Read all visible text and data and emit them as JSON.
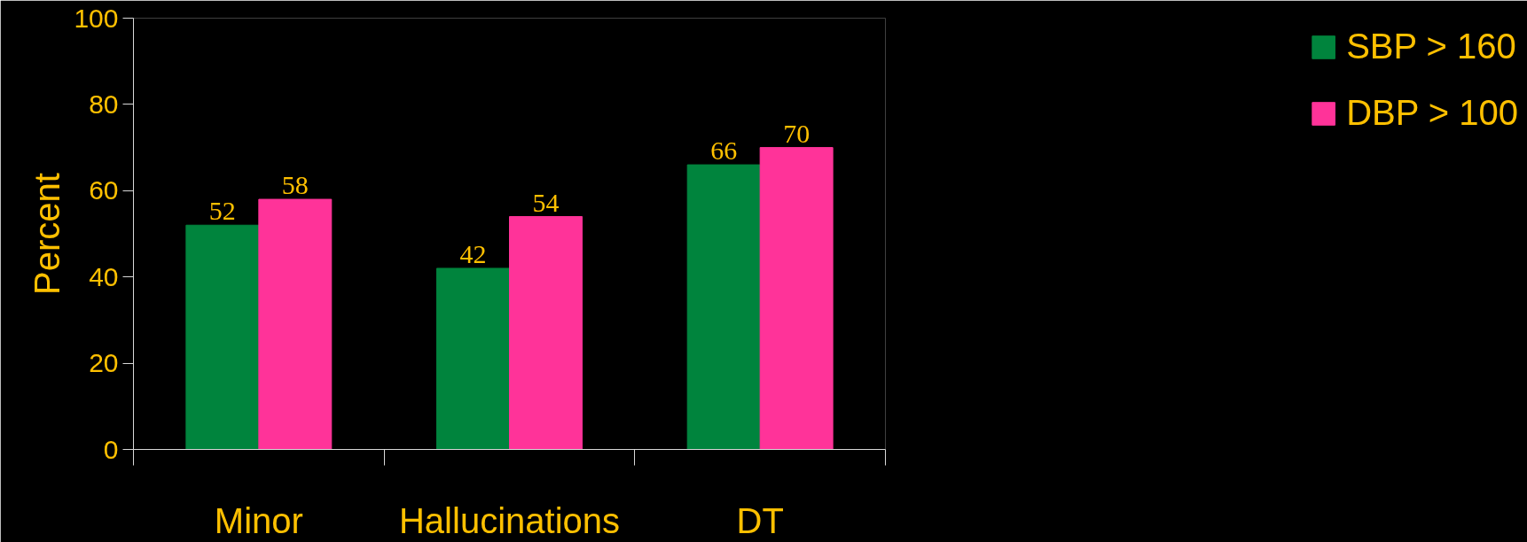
{
  "chart_data": {
    "type": "bar",
    "categories": [
      "Minor",
      "Hallucinations",
      "DT"
    ],
    "ylabel": "Percent",
    "ylim": [
      0,
      100
    ],
    "yticks": [
      0,
      20,
      40,
      60,
      80,
      100
    ],
    "series": [
      {
        "name": "SBP > 160",
        "color": "#00843d",
        "values": [
          52,
          42,
          66
        ]
      },
      {
        "name": "DBP > 100",
        "color": "#ff3399",
        "values": [
          58,
          54,
          70
        ]
      }
    ],
    "data_labels": true,
    "legend": "right",
    "grid": false
  }
}
